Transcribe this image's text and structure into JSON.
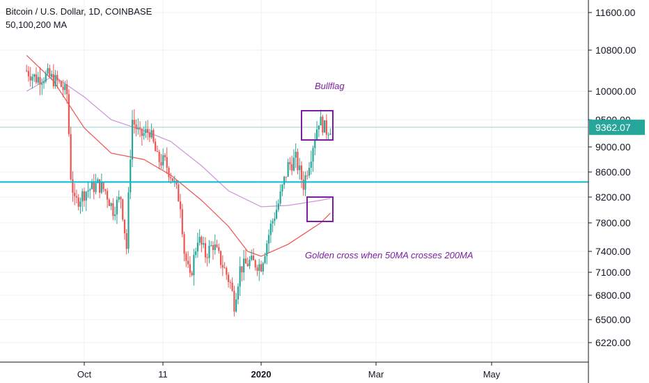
{
  "header": {
    "title": "Bitcoin / U.S. Dollar, 1D, COINBASE",
    "indicator": "50,100,200 MA"
  },
  "colors": {
    "up": "#26a69a",
    "down": "#ef5350",
    "hline": "#00bcd4",
    "ma_short": "#ef5350",
    "ma_long": "#ce93d8",
    "annotation": "#7b1fa2",
    "price_tag": "#26a69a",
    "grid": "#eef1f5",
    "axis_text": "#131722"
  },
  "chart_data": {
    "type": "candlestick",
    "y_ticks": [
      "11600.00",
      "10800.00",
      "10000.00",
      "9500.00",
      "9000.00",
      "8600.00",
      "8200.00",
      "7800.00",
      "7400.00",
      "7100.00",
      "6800.00",
      "6500.00",
      "6220.00"
    ],
    "x_ticks": [
      "Oct",
      "11",
      "2020",
      "Mar",
      "May"
    ],
    "last_price": "9362.07",
    "horizontal_line_price": 8440,
    "annotations": [
      {
        "text": "Bullflag"
      },
      {
        "text": "Golden cross when 50MA crosses 200MA"
      }
    ],
    "close_path": [
      [
        "2019-09-01",
        10400
      ],
      [
        "2019-09-06",
        10250
      ],
      [
        "2019-09-12",
        10300
      ],
      [
        "2019-09-18",
        10150
      ],
      [
        "2019-09-22",
        9950
      ],
      [
        "2019-09-24",
        8550
      ],
      [
        "2019-09-26",
        8100
      ],
      [
        "2019-10-02",
        8300
      ],
      [
        "2019-10-08",
        8400
      ],
      [
        "2019-10-12",
        8300
      ],
      [
        "2019-10-16",
        8000
      ],
      [
        "2019-10-20",
        8200
      ],
      [
        "2019-10-23",
        7450
      ],
      [
        "2019-10-25",
        8900
      ],
      [
        "2019-10-26",
        9500
      ],
      [
        "2019-10-30",
        9200
      ],
      [
        "2019-11-04",
        9300
      ],
      [
        "2019-11-08",
        8800
      ],
      [
        "2019-11-12",
        8750
      ],
      [
        "2019-11-16",
        8500
      ],
      [
        "2019-11-20",
        8100
      ],
      [
        "2019-11-22",
        7400
      ],
      [
        "2019-11-25",
        7000
      ],
      [
        "2019-11-29",
        7600
      ],
      [
        "2019-12-03",
        7350
      ],
      [
        "2019-12-07",
        7500
      ],
      [
        "2019-12-12",
        7200
      ],
      [
        "2019-12-16",
        6950
      ],
      [
        "2019-12-18",
        6700
      ],
      [
        "2019-12-21",
        7150
      ],
      [
        "2019-12-26",
        7250
      ],
      [
        "2020-01-01",
        7200
      ],
      [
        "2020-01-06",
        7750
      ],
      [
        "2020-01-10",
        8100
      ],
      [
        "2020-01-15",
        8700
      ],
      [
        "2020-01-19",
        8800
      ],
      [
        "2020-01-23",
        8400
      ],
      [
        "2020-01-27",
        8900
      ],
      [
        "2020-01-31",
        9500
      ],
      [
        "2020-02-04",
        9300
      ],
      [
        "2020-02-06",
        9362
      ]
    ],
    "ma_long_path": [
      [
        "2019-09-01",
        10000
      ],
      [
        "2019-09-15",
        10300
      ],
      [
        "2019-10-01",
        9900
      ],
      [
        "2019-10-15",
        9500
      ],
      [
        "2019-11-01",
        9300
      ],
      [
        "2019-11-15",
        9100
      ],
      [
        "2019-12-01",
        8700
      ],
      [
        "2019-12-15",
        8300
      ],
      [
        "2020-01-01",
        8050
      ],
      [
        "2020-01-15",
        8070
      ],
      [
        "2020-02-01",
        8150
      ],
      [
        "2020-02-06",
        8180
      ]
    ],
    "ma_short_path": [
      [
        "2019-09-01",
        10700
      ],
      [
        "2019-09-15",
        10200
      ],
      [
        "2019-10-01",
        9350
      ],
      [
        "2019-10-15",
        8900
      ],
      [
        "2019-11-01",
        8800
      ],
      [
        "2019-11-15",
        8550
      ],
      [
        "2019-12-01",
        8150
      ],
      [
        "2019-12-15",
        7750
      ],
      [
        "2019-12-25",
        7400
      ],
      [
        "2020-01-01",
        7330
      ],
      [
        "2020-01-15",
        7500
      ],
      [
        "2020-02-01",
        7800
      ],
      [
        "2020-02-06",
        7950
      ]
    ]
  }
}
